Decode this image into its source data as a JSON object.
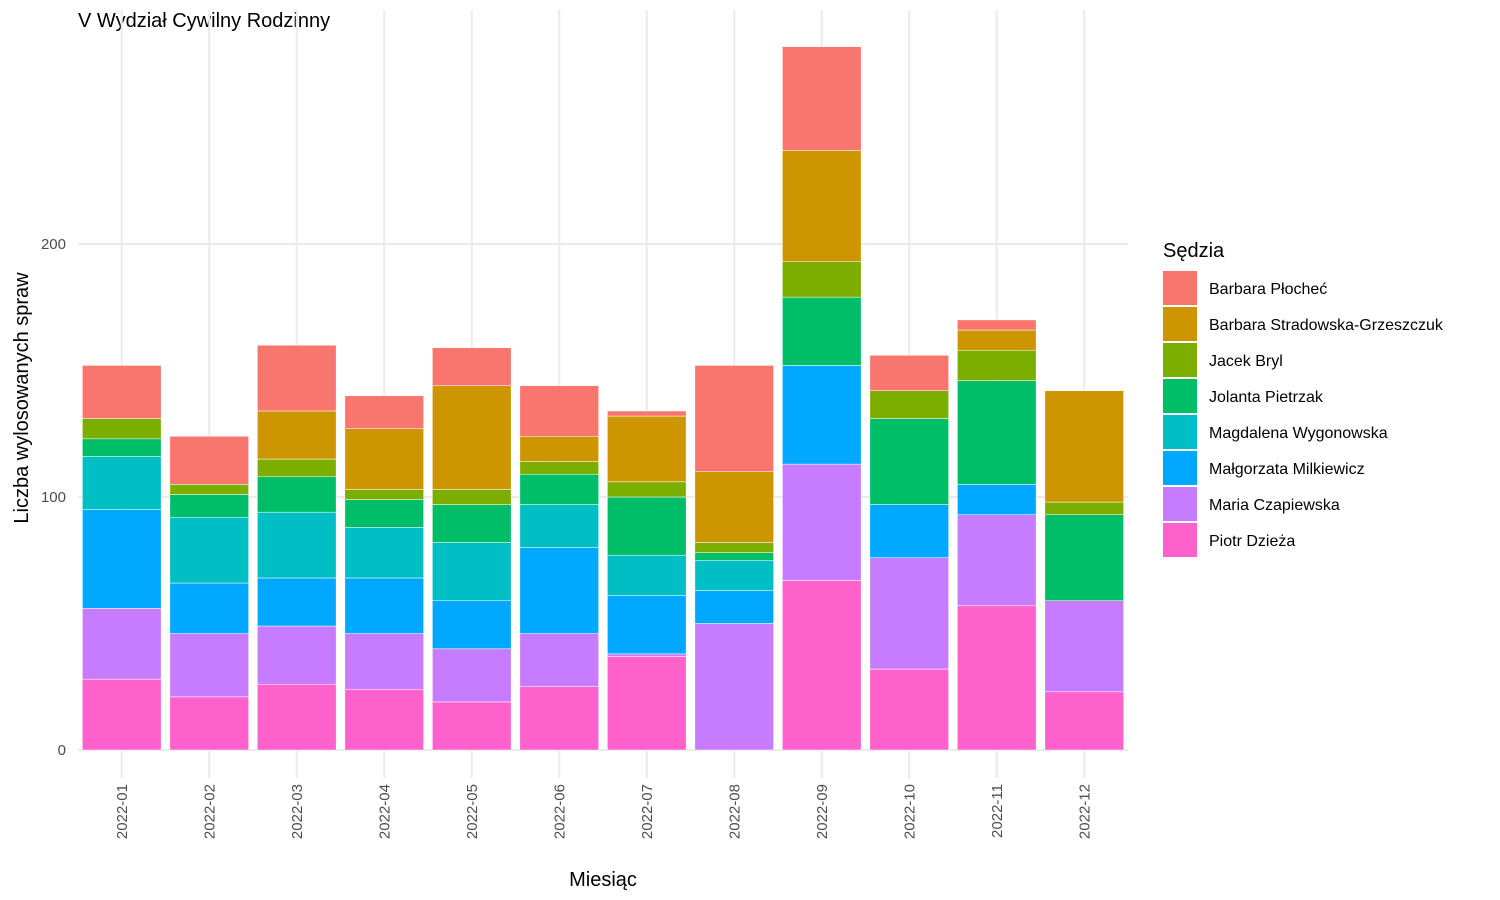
{
  "chart_data": {
    "type": "bar",
    "stacked": true,
    "title": "V Wydział Cywilny Rodzinny",
    "xlabel": "Miesiąc",
    "ylabel": "Liczba wylosowanych spraw",
    "ylim": [
      0,
      285
    ],
    "yticks": [
      0,
      100,
      200
    ],
    "grid": true,
    "legend": {
      "title": "Sędzia",
      "position": "right"
    },
    "categories": [
      "2022-01",
      "2022-02",
      "2022-03",
      "2022-04",
      "2022-05",
      "2022-06",
      "2022-07",
      "2022-08",
      "2022-09",
      "2022-10",
      "2022-11",
      "2022-12"
    ],
    "series": [
      {
        "name": "Piotr Dzieża",
        "color": "#FF61CC",
        "values": [
          28,
          21,
          26,
          24,
          19,
          25,
          37,
          0,
          67,
          32,
          57,
          23
        ]
      },
      {
        "name": "Maria Czapiewska",
        "color": "#C77CFF",
        "values": [
          28,
          25,
          23,
          22,
          21,
          21,
          1,
          50,
          46,
          44,
          36,
          36
        ]
      },
      {
        "name": "Małgorzata Milkiewicz",
        "color": "#00A9FF",
        "values": [
          39,
          20,
          19,
          22,
          19,
          34,
          23,
          13,
          39,
          21,
          12,
          0
        ]
      },
      {
        "name": "Magdalena Wygonowska",
        "color": "#00BFC4",
        "values": [
          21,
          26,
          26,
          20,
          23,
          17,
          16,
          12,
          0,
          0,
          0,
          0
        ]
      },
      {
        "name": "Jolanta Pietrzak",
        "color": "#00BE67",
        "values": [
          7,
          9,
          14,
          11,
          15,
          12,
          23,
          3,
          27,
          34,
          41,
          34
        ]
      },
      {
        "name": "Jacek Bryl",
        "color": "#7CAE00",
        "values": [
          8,
          4,
          7,
          4,
          6,
          5,
          6,
          4,
          14,
          11,
          12,
          5
        ]
      },
      {
        "name": "Barbara Stradowska-Grzeszczuk",
        "color": "#CD9600",
        "values": [
          0,
          0,
          19,
          24,
          41,
          10,
          26,
          28,
          44,
          0,
          8,
          44
        ]
      },
      {
        "name": "Barbara Płocheć",
        "color": "#F8766D",
        "values": [
          21,
          19,
          26,
          13,
          15,
          20,
          2,
          42,
          41,
          14,
          4,
          0
        ]
      }
    ],
    "legend_order": [
      "Barbara Płocheć",
      "Barbara Stradowska-Grzeszczuk",
      "Jacek Bryl",
      "Jolanta Pietrzak",
      "Magdalena Wygonowska",
      "Małgorzata Milkiewicz",
      "Maria Czapiewska",
      "Piotr Dzieża"
    ]
  }
}
